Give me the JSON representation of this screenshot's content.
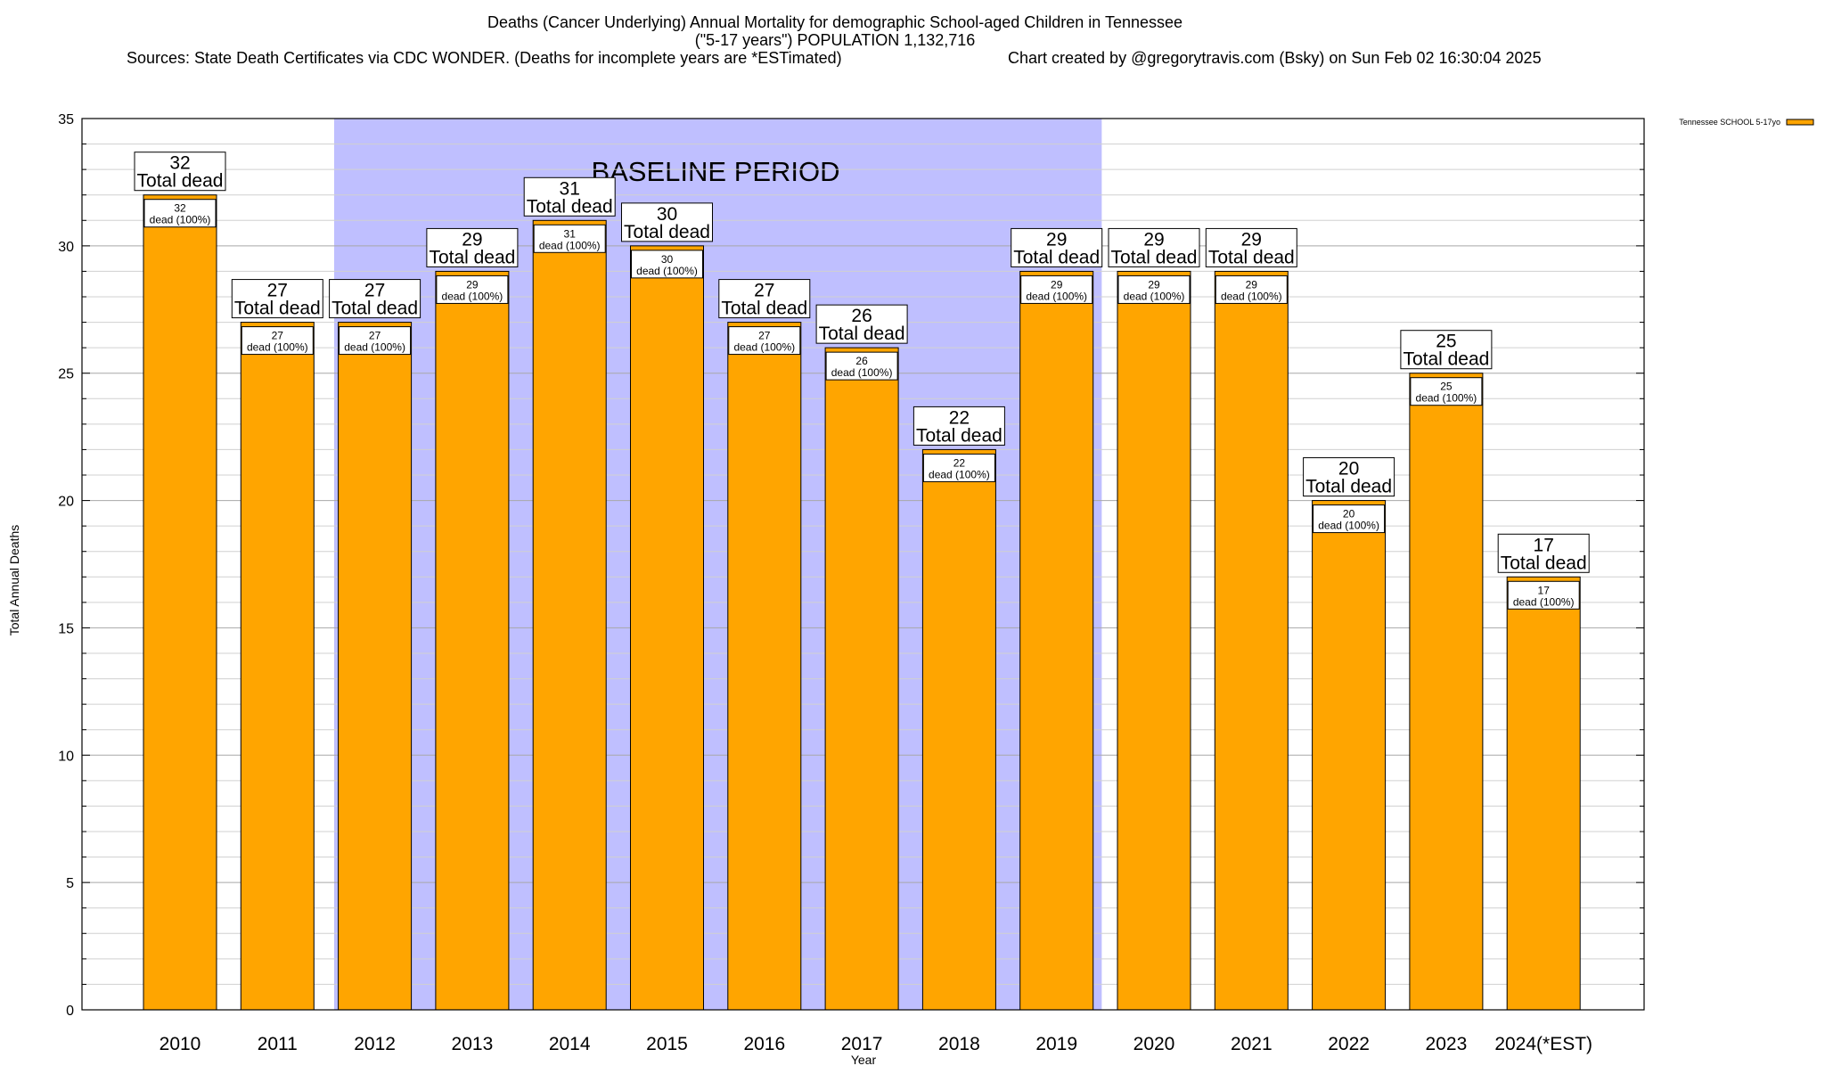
{
  "chart_data": {
    "type": "bar",
    "title": "Deaths (Cancer Underlying) Annual Mortality for demographic School-aged Children in Tennessee",
    "subtitle": "(\"5-17 years\") POPULATION 1,132,716",
    "source": "Sources: State Death Certificates via CDC WONDER. (Deaths for incomplete years are *ESTimated)",
    "credit": "Chart created by @gregorytravis.com (Bsky) on Sun Feb 02 16:30:04 2025",
    "xlabel": "Year",
    "ylabel": "Total Annual Deaths",
    "ylim": [
      0,
      35
    ],
    "yticks": [
      0,
      5,
      10,
      15,
      20,
      25,
      30,
      35
    ],
    "grid": true,
    "legend_position": "top-right",
    "categories": [
      "2010",
      "2011",
      "2012",
      "2013",
      "2014",
      "2015",
      "2016",
      "2017",
      "2018",
      "2019",
      "2020",
      "2021",
      "2022",
      "2023",
      "2024(*EST)"
    ],
    "series": [
      {
        "name": "Tennessee SCHOOL 5-17yo",
        "color": "#FFA500",
        "values": [
          32,
          27,
          27,
          29,
          31,
          30,
          27,
          26,
          22,
          29,
          29,
          29,
          20,
          25,
          17
        ]
      }
    ],
    "total_label_suffix": "Total dead",
    "inner_label_suffix": "dead (100%)",
    "baseline": {
      "label": "BASELINE PERIOD",
      "from": "2012",
      "to": "2019",
      "color": "#BFBFFF"
    }
  }
}
